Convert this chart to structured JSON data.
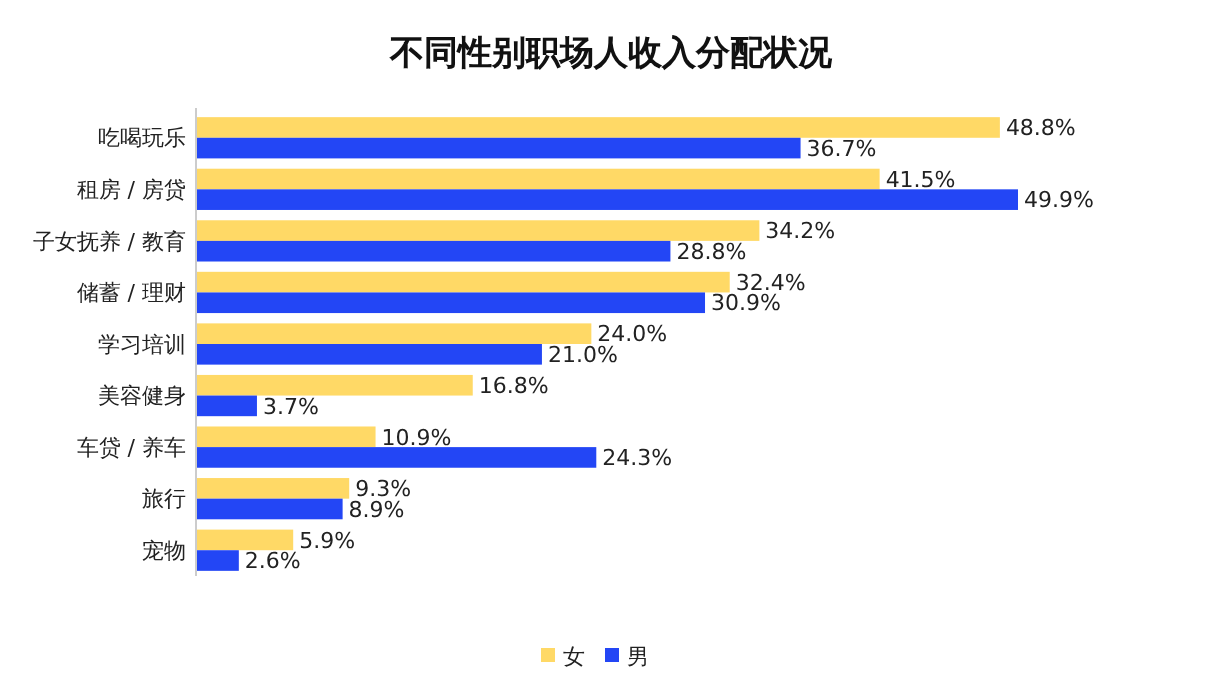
{
  "chart_data": {
    "type": "bar",
    "orientation": "horizontal",
    "title": "不同性别职场人收入分配状况",
    "categories": [
      "吃喝玩乐",
      "租房 / 房贷",
      "子女抚养 / 教育",
      "储蓄 / 理财",
      "学习培训",
      "美容健身",
      "车贷 / 养车",
      "旅行",
      "宠物"
    ],
    "series": [
      {
        "name": "女",
        "color": "#ffd966",
        "values": [
          48.8,
          41.5,
          34.2,
          32.4,
          24.0,
          16.8,
          10.9,
          9.3,
          5.9
        ],
        "value_labels": [
          "48.8%",
          "41.5%",
          "34.2%",
          "32.4%",
          "24.0%",
          "16.8%",
          "10.9%",
          "9.3%",
          "5.9%"
        ]
      },
      {
        "name": "男",
        "color": "#2346f5",
        "values": [
          36.7,
          49.9,
          28.8,
          30.9,
          21.0,
          3.7,
          24.3,
          8.9,
          2.6
        ],
        "value_labels": [
          "36.7%",
          "49.9%",
          "28.8%",
          "30.9%",
          "21.0%",
          "3.7%",
          "24.3%",
          "8.9%",
          "2.6%"
        ]
      }
    ],
    "legend": "bottom"
  }
}
